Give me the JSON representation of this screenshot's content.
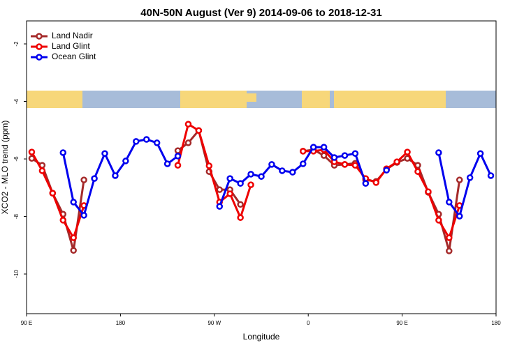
{
  "chart_data": {
    "type": "line",
    "title": "40N-50N August (Ver 9)   2014-09-06 to 2018-12-31",
    "x_label": "Longitude",
    "y_label": "XCO2 - MLO trend (ppm)",
    "x": [
      95,
      105,
      115,
      125,
      135,
      145,
      155,
      165,
      175,
      185,
      195,
      205,
      215,
      225,
      235,
      245,
      255,
      265,
      275,
      285,
      295,
      305,
      315,
      325,
      335,
      345,
      355,
      365,
      375,
      385,
      395,
      405,
      415,
      425,
      435,
      445,
      455,
      465,
      475,
      485,
      495,
      505,
      515,
      525,
      535
    ],
    "series": [
      {
        "name": "Land Nadir",
        "color": "#a52a2a",
        "values": [
          -5.98,
          -6.22,
          -7.19,
          -7.92,
          -9.18,
          -6.73,
          null,
          null,
          null,
          null,
          null,
          null,
          null,
          null,
          -5.71,
          -5.44,
          -5.01,
          -6.44,
          -7.07,
          -7.07,
          -7.58,
          null,
          null,
          null,
          null,
          null,
          -5.73,
          -5.68,
          -5.88,
          -6.22,
          -6.19,
          -6.15,
          -6.73,
          -6.78,
          -6.36,
          -6.12,
          -5.98,
          -6.22,
          -7.16,
          -7.92,
          -9.2,
          -6.73,
          null,
          null,
          null
        ]
      },
      {
        "name": "Land Glint",
        "color": "#ee0000",
        "values": [
          -5.76,
          -6.41,
          -7.19,
          -8.13,
          -8.74,
          -7.62,
          null,
          null,
          null,
          null,
          null,
          null,
          null,
          null,
          -6.22,
          -4.79,
          -5.01,
          -6.24,
          -7.5,
          -7.21,
          -8.04,
          -6.9,
          null,
          null,
          null,
          null,
          -5.73,
          -5.73,
          -5.68,
          -6.1,
          -6.19,
          -6.22,
          -6.68,
          -6.82,
          -6.34,
          -6.1,
          -5.76,
          -6.44,
          -7.14,
          -8.13,
          -8.74,
          -7.62,
          null,
          null,
          null
        ]
      },
      {
        "name": "Ocean Glint",
        "color": "#0000ee",
        "values": [
          null,
          null,
          null,
          -5.78,
          -7.5,
          -7.96,
          -6.68,
          -5.81,
          -6.58,
          -6.07,
          -5.39,
          -5.32,
          -5.44,
          -6.17,
          -5.9,
          null,
          null,
          null,
          -7.65,
          -6.68,
          -6.85,
          -6.53,
          -6.61,
          -6.19,
          -6.41,
          -6.46,
          -6.17,
          -5.59,
          -5.59,
          -5.95,
          -5.88,
          -5.81,
          -6.85,
          null,
          -6.39,
          null,
          null,
          null,
          null,
          -5.78,
          -7.5,
          -7.99,
          -6.65,
          -5.81,
          -6.58
        ]
      }
    ],
    "xlim": [
      90,
      540
    ],
    "xticks": [
      {
        "value": 90,
        "label": "90 E"
      },
      180,
      {
        "value": 270,
        "label": "90 W"
      },
      {
        "value": 360,
        "label": "0"
      },
      {
        "value": 450,
        "label": "90 E"
      },
      {
        "value": 540,
        "label": "180"
      }
    ],
    "ylim": [
      -11.38,
      -1.2
    ],
    "yticks": [
      -10,
      -8,
      -6,
      -4,
      -2
    ],
    "legend": "upper-left"
  }
}
